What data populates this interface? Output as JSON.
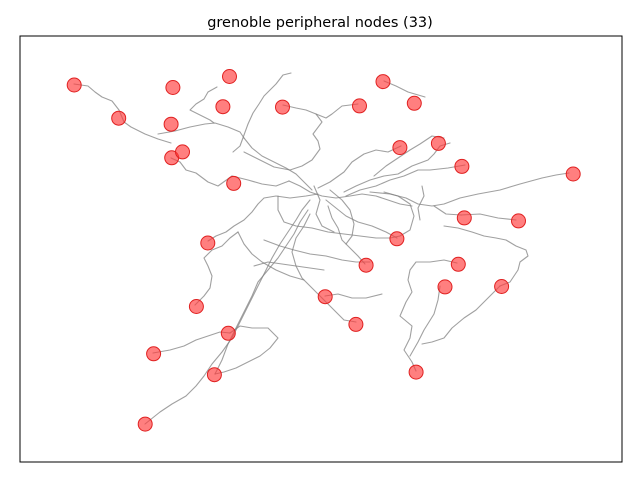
{
  "chart_data": {
    "type": "scatter",
    "title": "grenoble peripheral nodes (33)",
    "xlabel": "",
    "ylabel": "",
    "axes_ticks": false,
    "grid": false,
    "legend": "none",
    "node_color": "#ff3b3b",
    "node_opacity": 0.65,
    "edge_color": "#808080",
    "xlim": [
      0,
      100
    ],
    "ylim": [
      0,
      100
    ],
    "nodes": [
      {
        "x": 9.0,
        "y": 88.5
      },
      {
        "x": 16.4,
        "y": 80.7
      },
      {
        "x": 25.4,
        "y": 87.9
      },
      {
        "x": 25.1,
        "y": 79.3
      },
      {
        "x": 34.8,
        "y": 90.5
      },
      {
        "x": 43.6,
        "y": 83.3
      },
      {
        "x": 60.3,
        "y": 89.3
      },
      {
        "x": 65.5,
        "y": 84.2
      },
      {
        "x": 69.5,
        "y": 74.8
      },
      {
        "x": 63.1,
        "y": 73.8
      },
      {
        "x": 73.4,
        "y": 69.4
      },
      {
        "x": 91.9,
        "y": 67.6
      },
      {
        "x": 25.2,
        "y": 71.4
      },
      {
        "x": 35.5,
        "y": 65.4
      },
      {
        "x": 27.0,
        "y": 72.8
      },
      {
        "x": 33.7,
        "y": 83.4
      },
      {
        "x": 56.4,
        "y": 83.6
      },
      {
        "x": 73.8,
        "y": 57.3
      },
      {
        "x": 82.8,
        "y": 56.6
      },
      {
        "x": 62.6,
        "y": 52.4
      },
      {
        "x": 31.2,
        "y": 51.4
      },
      {
        "x": 57.5,
        "y": 46.2
      },
      {
        "x": 72.8,
        "y": 46.4
      },
      {
        "x": 70.6,
        "y": 41.1
      },
      {
        "x": 50.7,
        "y": 38.8
      },
      {
        "x": 80.0,
        "y": 41.2
      },
      {
        "x": 29.3,
        "y": 36.5
      },
      {
        "x": 34.6,
        "y": 30.2
      },
      {
        "x": 55.8,
        "y": 32.3
      },
      {
        "x": 22.2,
        "y": 25.4
      },
      {
        "x": 32.3,
        "y": 20.5
      },
      {
        "x": 65.8,
        "y": 21.1
      },
      {
        "x": 20.8,
        "y": 8.9
      }
    ]
  }
}
